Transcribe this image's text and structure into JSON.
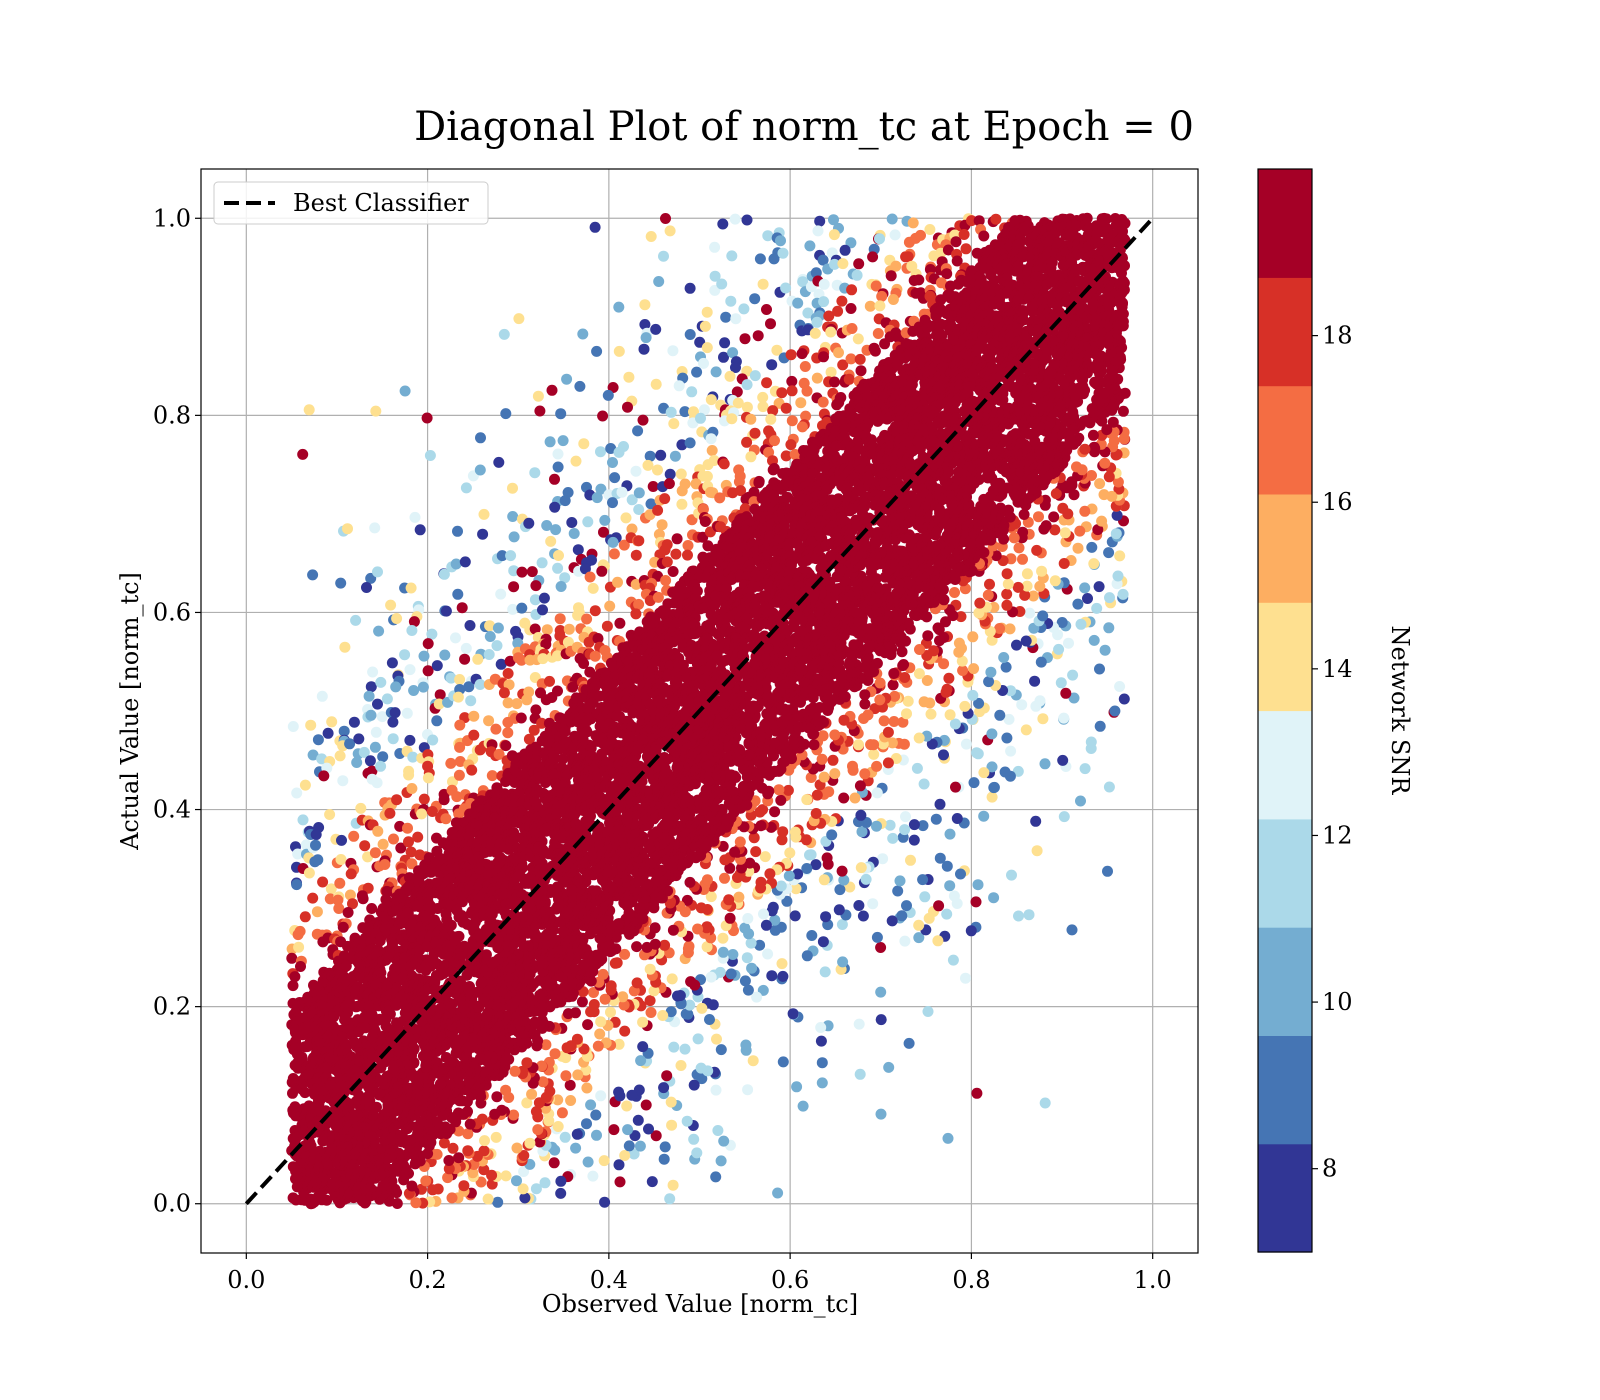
{
  "chart_data": {
    "type": "scatter",
    "title": "Diagonal Plot of norm_tc at Epoch = 0",
    "xlabel": "Observed Value [norm_tc]",
    "ylabel": "Actual Value [norm_tc]",
    "xlim": [
      -0.05,
      1.05
    ],
    "ylim": [
      -0.05,
      1.05
    ],
    "x_ticks": [
      0.0,
      0.2,
      0.4,
      0.6,
      0.8,
      1.0
    ],
    "y_ticks": [
      0.0,
      0.2,
      0.4,
      0.6,
      0.8,
      1.0
    ],
    "x_tick_labels": [
      "0.0",
      "0.2",
      "0.4",
      "0.6",
      "0.8",
      "1.0"
    ],
    "y_tick_labels": [
      "0.0",
      "0.2",
      "0.4",
      "0.6",
      "0.8",
      "1.0"
    ],
    "grid": true,
    "legend": {
      "position": "upper-left",
      "entries": [
        {
          "label": "Best Classifier",
          "style": "dashed",
          "color": "#000000"
        }
      ]
    },
    "reference_line": {
      "name": "Best Classifier",
      "x": [
        0.0,
        1.0
      ],
      "y": [
        0.0,
        1.0
      ]
    },
    "scatter_description": {
      "color_by": "Network SNR",
      "high_snr_band_halfwidth": 0.15,
      "x_range": [
        0.05,
        0.97
      ],
      "y_range": [
        0.0,
        1.0
      ]
    },
    "colorbar": {
      "label": "Network SNR",
      "vmin": 7,
      "vmax": 20,
      "ticks": [
        8,
        10,
        12,
        14,
        16,
        18
      ],
      "tick_labels": [
        "8",
        "10",
        "12",
        "14",
        "16",
        "18"
      ],
      "colors": [
        "#313695",
        "#4575b4",
        "#74add1",
        "#abd9e9",
        "#e0f3f8",
        "#fee090",
        "#fdae61",
        "#f46d43",
        "#d73027",
        "#a50026"
      ]
    }
  }
}
